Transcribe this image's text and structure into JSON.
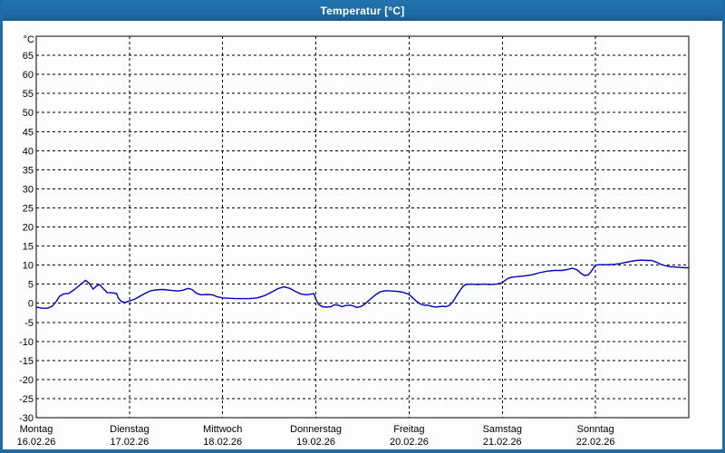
{
  "window": {
    "title": "Temperatur [°C]"
  },
  "colors": {
    "accent": "#1e6ba6",
    "title_text": "#ffffff",
    "chart_background": "#fcfdfd",
    "grid": "#000000",
    "line": "#0000bb"
  },
  "chart_data": {
    "type": "line",
    "title": "Temperatur [°C]",
    "unit_label": "°C",
    "ylabel": "Temperatur",
    "ylim": [
      -30,
      70
    ],
    "ytick_step": 5,
    "ytick_label_min": -30,
    "ytick_label_max": 65,
    "grid": true,
    "legend": "none",
    "line_color": "#0000bb",
    "x_axis_unit": "days",
    "days": [
      {
        "name": "Montag",
        "date": "16.02.26"
      },
      {
        "name": "Dienstag",
        "date": "17.02.26"
      },
      {
        "name": "Mittwoch",
        "date": "18.02.26"
      },
      {
        "name": "Donnerstag",
        "date": "19.02.26"
      },
      {
        "name": "Freitag",
        "date": "20.02.26"
      },
      {
        "name": "Samstag",
        "date": "21.02.26"
      },
      {
        "name": "Sonntag",
        "date": "22.02.26"
      }
    ],
    "points": [
      [
        0.0,
        -1.0
      ],
      [
        0.06,
        -1.3
      ],
      [
        0.12,
        -1.3
      ],
      [
        0.17,
        -0.8
      ],
      [
        0.21,
        0.3
      ],
      [
        0.25,
        1.8
      ],
      [
        0.29,
        2.4
      ],
      [
        0.35,
        2.6
      ],
      [
        0.41,
        3.6
      ],
      [
        0.47,
        4.8
      ],
      [
        0.53,
        6.0
      ],
      [
        0.57,
        5.2
      ],
      [
        0.61,
        3.7
      ],
      [
        0.65,
        4.6
      ],
      [
        0.68,
        4.9
      ],
      [
        0.72,
        3.8
      ],
      [
        0.76,
        2.8
      ],
      [
        0.82,
        2.7
      ],
      [
        0.86,
        2.6
      ],
      [
        0.88,
        1.4
      ],
      [
        0.91,
        0.5
      ],
      [
        0.95,
        0.2
      ],
      [
        1.0,
        0.6
      ],
      [
        1.05,
        1.0
      ],
      [
        1.11,
        1.8
      ],
      [
        1.17,
        2.6
      ],
      [
        1.22,
        3.2
      ],
      [
        1.28,
        3.5
      ],
      [
        1.36,
        3.6
      ],
      [
        1.44,
        3.4
      ],
      [
        1.52,
        3.2
      ],
      [
        1.57,
        3.4
      ],
      [
        1.63,
        3.9
      ],
      [
        1.67,
        3.6
      ],
      [
        1.72,
        2.6
      ],
      [
        1.77,
        2.2
      ],
      [
        1.83,
        2.3
      ],
      [
        1.89,
        2.2
      ],
      [
        1.94,
        1.7
      ],
      [
        2.0,
        1.4
      ],
      [
        2.06,
        1.3
      ],
      [
        2.14,
        1.2
      ],
      [
        2.22,
        1.2
      ],
      [
        2.29,
        1.2
      ],
      [
        2.37,
        1.4
      ],
      [
        2.45,
        2.0
      ],
      [
        2.53,
        3.0
      ],
      [
        2.6,
        3.9
      ],
      [
        2.66,
        4.3
      ],
      [
        2.72,
        3.9
      ],
      [
        2.78,
        3.1
      ],
      [
        2.84,
        2.4
      ],
      [
        2.9,
        2.2
      ],
      [
        2.95,
        2.4
      ],
      [
        2.98,
        2.5
      ],
      [
        3.0,
        1.0
      ],
      [
        3.03,
        -0.3
      ],
      [
        3.07,
        -0.9
      ],
      [
        3.11,
        -1.0
      ],
      [
        3.16,
        -0.9
      ],
      [
        3.2,
        -0.4
      ],
      [
        3.24,
        -0.5
      ],
      [
        3.28,
        -0.9
      ],
      [
        3.32,
        -0.6
      ],
      [
        3.36,
        -0.5
      ],
      [
        3.4,
        -0.7
      ],
      [
        3.44,
        -1.1
      ],
      [
        3.48,
        -0.9
      ],
      [
        3.52,
        -0.3
      ],
      [
        3.58,
        1.0
      ],
      [
        3.64,
        2.2
      ],
      [
        3.69,
        3.0
      ],
      [
        3.75,
        3.3
      ],
      [
        3.81,
        3.2
      ],
      [
        3.87,
        3.1
      ],
      [
        3.93,
        2.9
      ],
      [
        3.97,
        2.6
      ],
      [
        4.0,
        2.3
      ],
      [
        4.04,
        1.4
      ],
      [
        4.08,
        0.5
      ],
      [
        4.12,
        -0.2
      ],
      [
        4.16,
        -0.5
      ],
      [
        4.2,
        -0.5
      ],
      [
        4.24,
        -0.8
      ],
      [
        4.28,
        -1.0
      ],
      [
        4.32,
        -0.9
      ],
      [
        4.36,
        -0.8
      ],
      [
        4.39,
        -0.9
      ],
      [
        4.43,
        -0.6
      ],
      [
        4.47,
        0.4
      ],
      [
        4.51,
        2.0
      ],
      [
        4.55,
        3.5
      ],
      [
        4.58,
        4.5
      ],
      [
        4.61,
        4.9
      ],
      [
        4.67,
        5.0
      ],
      [
        4.73,
        4.9
      ],
      [
        4.8,
        5.0
      ],
      [
        4.87,
        4.9
      ],
      [
        4.94,
        5.0
      ],
      [
        5.0,
        5.4
      ],
      [
        5.03,
        6.0
      ],
      [
        5.06,
        6.5
      ],
      [
        5.1,
        6.8
      ],
      [
        5.17,
        7.0
      ],
      [
        5.25,
        7.2
      ],
      [
        5.33,
        7.5
      ],
      [
        5.4,
        8.0
      ],
      [
        5.48,
        8.4
      ],
      [
        5.56,
        8.6
      ],
      [
        5.64,
        8.6
      ],
      [
        5.71,
        8.9
      ],
      [
        5.75,
        9.2
      ],
      [
        5.8,
        8.8
      ],
      [
        5.84,
        7.9
      ],
      [
        5.88,
        7.3
      ],
      [
        5.92,
        7.4
      ],
      [
        5.95,
        8.2
      ],
      [
        5.98,
        9.3
      ],
      [
        6.0,
        10.0
      ],
      [
        6.05,
        10.1
      ],
      [
        6.12,
        10.1
      ],
      [
        6.2,
        10.2
      ],
      [
        6.26,
        10.4
      ],
      [
        6.32,
        10.7
      ],
      [
        6.38,
        11.0
      ],
      [
        6.44,
        11.2
      ],
      [
        6.49,
        11.3
      ],
      [
        6.55,
        11.2
      ],
      [
        6.6,
        11.2
      ],
      [
        6.65,
        10.8
      ],
      [
        6.69,
        10.3
      ],
      [
        6.74,
        9.9
      ],
      [
        6.79,
        9.6
      ],
      [
        6.85,
        9.5
      ],
      [
        6.9,
        9.4
      ],
      [
        6.96,
        9.3
      ],
      [
        7.0,
        9.3
      ]
    ]
  }
}
